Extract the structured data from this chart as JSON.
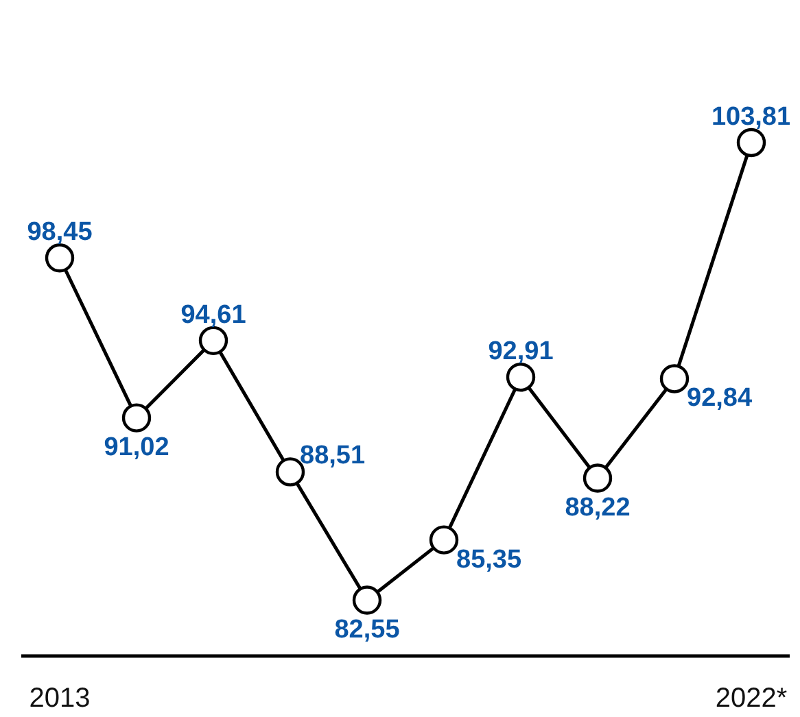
{
  "chart_data": {
    "type": "line",
    "categories": [
      "2013",
      null,
      null,
      null,
      null,
      null,
      null,
      null,
      null,
      "2022*"
    ],
    "values": [
      98.45,
      91.02,
      94.61,
      88.51,
      82.55,
      85.35,
      92.91,
      88.22,
      92.84,
      103.81
    ],
    "value_labels": [
      "98,45",
      "91,02",
      "94,61",
      "88,51",
      "82,55",
      "85,35",
      "92,91",
      "88,22",
      "92,84",
      "103,81"
    ],
    "color": "#000000",
    "tick_labels": "x",
    "marker": "circle",
    "line_style": "solid",
    "grid": false
  }
}
